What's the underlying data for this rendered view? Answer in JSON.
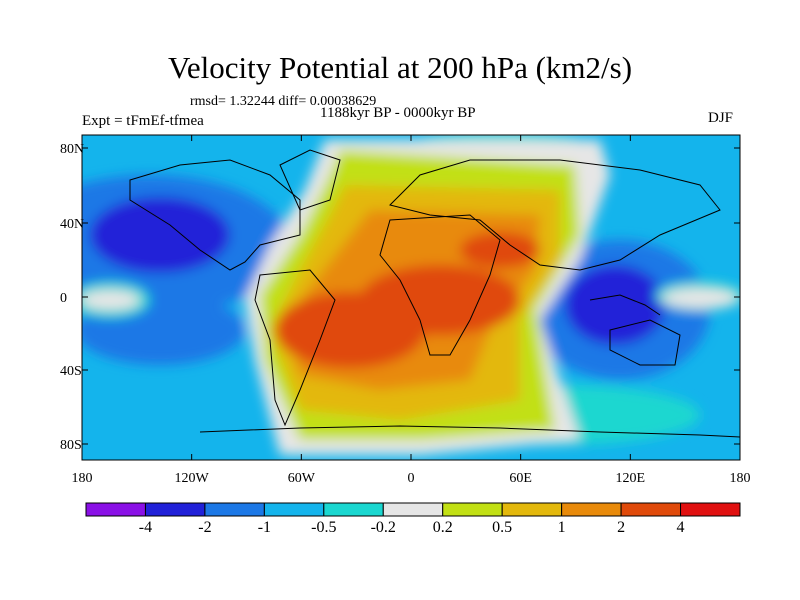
{
  "title": "Velocity Potential at 200 hPa (km2/s)",
  "stats": "rmsd= 1.32244 diff= 0.00038629",
  "period": "1188kyr BP - 0000kyr BP",
  "experiment": "Expt = tFmEf-tfmea",
  "season": "DJF",
  "lat_ticks": [
    "80N",
    "40N",
    "0",
    "40S",
    "80S"
  ],
  "lon_ticks": [
    "180",
    "120W",
    "60W",
    "0",
    "60E",
    "120E",
    "180"
  ],
  "colorbar": {
    "labels": [
      "-4",
      "-2",
      "-1",
      "-0.5",
      "-0.2",
      "0.2",
      "0.5",
      "1",
      "2",
      "4"
    ],
    "colors": [
      "#8a10e6",
      "#2121d8",
      "#1c78e6",
      "#14b4ec",
      "#1bd7d0",
      "#e6e6e6",
      "#c2e014",
      "#e3b80c",
      "#e88a0a",
      "#e04a0a",
      "#e01010"
    ]
  },
  "map_colors": {
    "neutral": "#e6e6e6",
    "neg1": "#1bd7d0",
    "neg2": "#14b4ec",
    "neg3": "#1c78e6",
    "neg4": "#2121d8",
    "pos1": "#c2e014",
    "pos2": "#e3b80c",
    "pos3": "#e88a0a",
    "pos4": "#e04a0a"
  }
}
